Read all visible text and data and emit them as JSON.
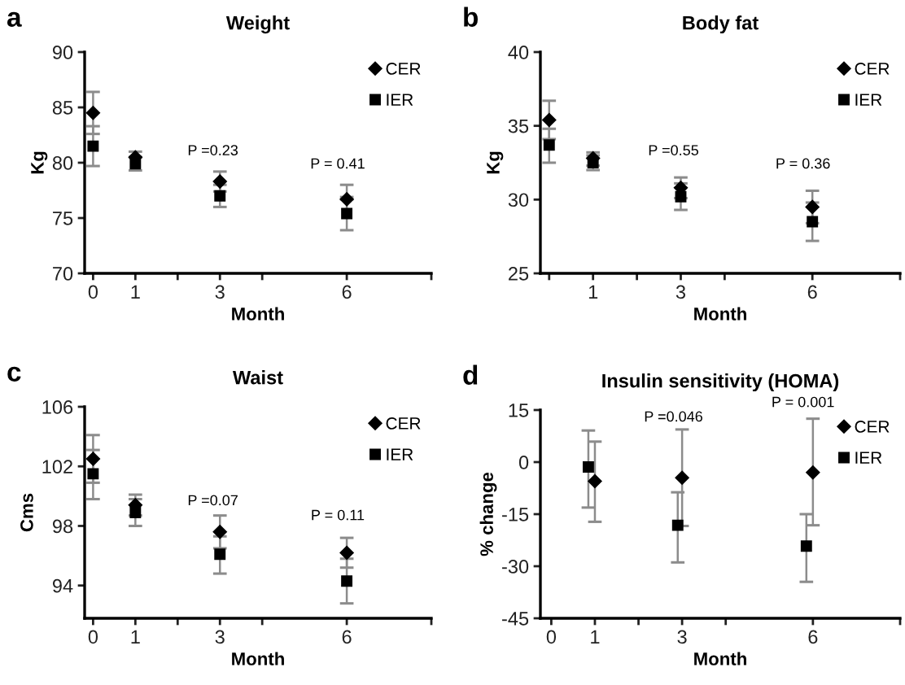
{
  "chart_data": [
    {
      "type": "scatter",
      "title": "Weight",
      "xlabel": "Month",
      "ylabel": "Kg",
      "annotations": [
        "a",
        "P =0.23",
        "P = 0.41"
      ],
      "xlim": [
        -0.2,
        8
      ],
      "xticks": [
        0,
        1,
        {
          "value": 2,
          "label": null
        },
        3,
        {
          "value": 4,
          "label": null
        },
        6,
        {
          "value": 8,
          "label": null
        }
      ],
      "ylim": [
        70,
        90
      ],
      "yticks": [
        70,
        75,
        80,
        85,
        90
      ],
      "legend": "top right",
      "grid": false,
      "series": [
        {
          "name": "CER",
          "color": "#000000",
          "marker": "diamond",
          "x": [
            0,
            1,
            3,
            6
          ],
          "values": [
            84.5,
            80.5,
            78.3,
            76.7
          ],
          "errors": [
            [
              82.6,
              86.4
            ],
            [
              80.5,
              81.0
            ],
            [
              77.4,
              79.2
            ],
            [
              76.7,
              78.0
            ]
          ]
        },
        {
          "name": "IER",
          "color": "#000000",
          "marker": "square",
          "x": [
            0,
            1,
            3,
            6
          ],
          "values": [
            81.5,
            79.9,
            77.0,
            75.4
          ],
          "errors": [
            [
              79.7,
              83.3
            ],
            [
              79.3,
              80.5
            ],
            [
              76.0,
              78.0
            ],
            [
              73.9,
              76.9
            ]
          ]
        }
      ]
    },
    {
      "type": "scatter",
      "title": "Body fat",
      "xlabel": "Month",
      "ylabel": "Kg",
      "annotations": [
        "b",
        "P =0.55",
        "P = 0.36"
      ],
      "xlim": [
        -0.2,
        8
      ],
      "xticks": [
        {
          "value": 0,
          "label": null
        },
        1,
        {
          "value": 2,
          "label": null
        },
        3,
        {
          "value": 4,
          "label": null
        },
        6,
        {
          "value": 8,
          "label": null
        }
      ],
      "ylim": [
        25,
        40
      ],
      "yticks": [
        25,
        30,
        35,
        40
      ],
      "legend": "top right",
      "grid": false,
      "series": [
        {
          "name": "CER",
          "color": "#000000",
          "marker": "diamond",
          "x": [
            0,
            1,
            3,
            6
          ],
          "values": [
            35.4,
            32.8,
            30.8,
            29.5
          ],
          "errors": [
            [
              34.1,
              36.7
            ],
            [
              32.3,
              33.2
            ],
            [
              30.1,
              31.5
            ],
            [
              28.4,
              30.6
            ]
          ]
        },
        {
          "name": "IER",
          "color": "#000000",
          "marker": "square",
          "x": [
            0,
            1,
            3,
            6
          ],
          "values": [
            33.7,
            32.5,
            30.2,
            28.5
          ],
          "errors": [
            [
              32.5,
              34.8
            ],
            [
              32.0,
              33.0
            ],
            [
              29.3,
              31.1
            ],
            [
              27.2,
              29.8
            ]
          ]
        }
      ]
    },
    {
      "type": "scatter",
      "title": "Waist",
      "xlabel": "Month",
      "ylabel": "Cms",
      "annotations": [
        "c",
        "P =0.07",
        "P = 0.11"
      ],
      "xlim": [
        -0.2,
        8
      ],
      "xticks": [
        0,
        1,
        {
          "value": 2,
          "label": null
        },
        3,
        {
          "value": 4,
          "label": null
        },
        6,
        {
          "value": 8,
          "label": null
        }
      ],
      "ylim": [
        91.8,
        106
      ],
      "yticks": [
        94,
        98,
        102,
        106
      ],
      "legend": "top right",
      "grid": false,
      "series": [
        {
          "name": "CER",
          "color": "#000000",
          "marker": "diamond",
          "x": [
            0,
            1,
            3,
            6
          ],
          "values": [
            102.5,
            99.4,
            97.6,
            96.2
          ],
          "errors": [
            [
              100.9,
              104.1
            ],
            [
              98.7,
              100.1
            ],
            [
              96.5,
              98.7
            ],
            [
              95.2,
              97.2
            ]
          ]
        },
        {
          "name": "IER",
          "color": "#000000",
          "marker": "square",
          "x": [
            0,
            1,
            3,
            6
          ],
          "values": [
            101.5,
            98.9,
            96.1,
            94.3
          ],
          "errors": [
            [
              99.8,
              103.1
            ],
            [
              98.0,
              99.8
            ],
            [
              94.8,
              97.3
            ],
            [
              92.8,
              95.8
            ]
          ]
        }
      ]
    },
    {
      "type": "scatter",
      "title": "Insulin sensitivity (HOMA)",
      "xlabel": "Month",
      "ylabel": "% change",
      "annotations": [
        "d",
        "P =0.046",
        "P = 0.001"
      ],
      "xlim": [
        -0.25,
        8
      ],
      "xticks": [
        0,
        1,
        {
          "value": 2,
          "label": null
        },
        3,
        {
          "value": 4,
          "label": null
        },
        6,
        {
          "value": 8,
          "label": null
        }
      ],
      "ylim": [
        -45,
        15
      ],
      "yticks": [
        {
          "value": -45,
          "label": "-45"
        },
        {
          "value": -30,
          "label": "-30"
        },
        {
          "value": -15,
          "label": "-15"
        },
        0,
        15
      ],
      "legend": "top right",
      "grid": false,
      "series": [
        {
          "name": "CER",
          "color": "#000000",
          "marker": "diamond",
          "x": [
            1,
            3,
            6
          ],
          "values": [
            -5.5,
            -4.5,
            -3.0
          ],
          "errors": [
            [
              -17.2,
              5.9
            ],
            [
              -18.4,
              9.4
            ],
            [
              -18.2,
              12.5
            ]
          ]
        },
        {
          "name": "IER",
          "color": "#000000",
          "marker": "square",
          "x": [
            0.85,
            2.9,
            5.85
          ],
          "values": [
            -1.4,
            -18.2,
            -24.2
          ],
          "errors": [
            [
              -13.1,
              9.1
            ],
            [
              -28.9,
              -8.7
            ],
            [
              -34.5,
              -15.0
            ]
          ]
        }
      ]
    }
  ]
}
